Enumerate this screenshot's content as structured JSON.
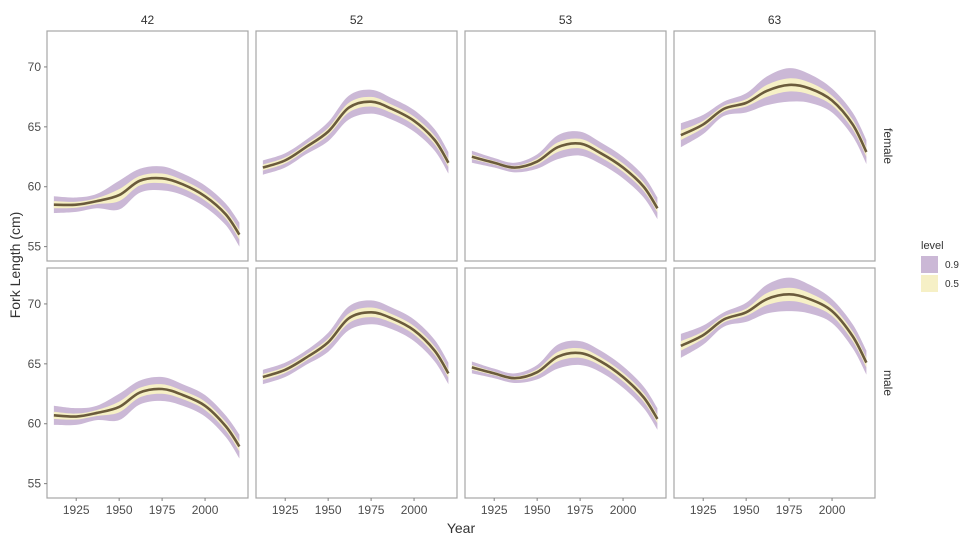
{
  "chart_data": {
    "type": "line",
    "facet_columns": [
      "42",
      "52",
      "53",
      "63"
    ],
    "facet_rows": [
      "female",
      "male"
    ],
    "xlabel": "Year",
    "ylabel": "Fork Length (cm)",
    "xlim": [
      1908,
      2025
    ],
    "ylim": [
      53.8,
      73.0
    ],
    "x_ticks": [
      1925,
      1950,
      1975,
      2000
    ],
    "y_ticks": [
      55,
      60,
      65,
      70
    ],
    "grid": false,
    "legend": {
      "title": "level",
      "placement": "right",
      "entries": [
        {
          "label": "0.9",
          "color": "#cbb8d6"
        },
        {
          "label": "0.5",
          "color": "#f6f0c6"
        }
      ]
    },
    "colors": {
      "line": "#6b5b3c",
      "band_09": "#cbb8d6",
      "band_05": "#f6f0c6",
      "panel_border": "#a6a6a6"
    },
    "x": [
      1912,
      1925,
      1937,
      1950,
      1962,
      1975,
      1987,
      2000,
      2012,
      2020
    ],
    "panels": [
      {
        "column": "42",
        "row": "female",
        "y": [
          58.5,
          58.5,
          58.8,
          59.3,
          60.5,
          60.7,
          60.2,
          59.2,
          57.7,
          56.0
        ],
        "band09": [
          0.7,
          0.6,
          0.6,
          1.2,
          1.0,
          1.0,
          0.9,
          0.9,
          0.9,
          1.0
        ],
        "band05": [
          0.3,
          0.25,
          0.25,
          0.5,
          0.4,
          0.4,
          0.35,
          0.35,
          0.35,
          0.4
        ]
      },
      {
        "column": "52",
        "row": "female",
        "y": [
          61.6,
          62.2,
          63.3,
          64.6,
          66.6,
          67.1,
          66.5,
          65.5,
          63.9,
          62.0
        ],
        "band09": [
          0.6,
          0.6,
          0.6,
          0.8,
          1.0,
          1.0,
          0.9,
          0.9,
          0.9,
          0.9
        ],
        "band05": [
          0.25,
          0.25,
          0.25,
          0.3,
          0.4,
          0.4,
          0.35,
          0.35,
          0.35,
          0.35
        ]
      },
      {
        "column": "53",
        "row": "female",
        "y": [
          62.5,
          62.0,
          61.6,
          62.1,
          63.3,
          63.6,
          62.8,
          61.6,
          60.0,
          58.2
        ],
        "band09": [
          0.5,
          0.4,
          0.4,
          0.6,
          1.0,
          1.0,
          0.9,
          0.9,
          0.9,
          0.9
        ],
        "band05": [
          0.2,
          0.15,
          0.15,
          0.25,
          0.4,
          0.4,
          0.35,
          0.35,
          0.35,
          0.35
        ]
      },
      {
        "column": "63",
        "row": "female",
        "y": [
          64.3,
          65.2,
          66.5,
          67.0,
          68.0,
          68.5,
          68.2,
          67.2,
          65.2,
          62.9
        ],
        "band09": [
          1.0,
          0.8,
          0.6,
          0.8,
          1.2,
          1.4,
          1.2,
          1.0,
          1.0,
          1.0
        ],
        "band05": [
          0.4,
          0.3,
          0.25,
          0.3,
          0.5,
          0.55,
          0.5,
          0.4,
          0.4,
          0.4
        ]
      },
      {
        "column": "42",
        "row": "male",
        "y": [
          60.7,
          60.6,
          60.9,
          61.4,
          62.6,
          62.9,
          62.4,
          61.5,
          59.8,
          58.1
        ],
        "band09": [
          0.8,
          0.7,
          0.6,
          1.1,
          1.0,
          1.0,
          0.9,
          0.9,
          0.9,
          1.0
        ],
        "band05": [
          0.3,
          0.25,
          0.25,
          0.45,
          0.4,
          0.4,
          0.35,
          0.35,
          0.35,
          0.4
        ]
      },
      {
        "column": "52",
        "row": "male",
        "y": [
          63.9,
          64.5,
          65.5,
          66.8,
          68.8,
          69.3,
          68.8,
          67.8,
          66.1,
          64.2
        ],
        "band09": [
          0.6,
          0.6,
          0.6,
          0.8,
          1.0,
          1.0,
          0.9,
          0.9,
          0.9,
          0.9
        ],
        "band05": [
          0.25,
          0.25,
          0.25,
          0.3,
          0.4,
          0.4,
          0.35,
          0.35,
          0.35,
          0.35
        ]
      },
      {
        "column": "53",
        "row": "male",
        "y": [
          64.7,
          64.2,
          63.8,
          64.3,
          65.6,
          65.9,
          65.2,
          63.9,
          62.2,
          60.4
        ],
        "band09": [
          0.5,
          0.4,
          0.4,
          0.6,
          1.0,
          1.0,
          0.9,
          0.9,
          0.9,
          0.9
        ],
        "band05": [
          0.2,
          0.15,
          0.15,
          0.25,
          0.4,
          0.4,
          0.35,
          0.35,
          0.35,
          0.35
        ]
      },
      {
        "column": "63",
        "row": "male",
        "y": [
          66.5,
          67.4,
          68.7,
          69.3,
          70.4,
          70.8,
          70.4,
          69.4,
          67.3,
          65.1
        ],
        "band09": [
          1.0,
          0.8,
          0.6,
          0.8,
          1.2,
          1.4,
          1.2,
          1.0,
          1.0,
          1.0
        ],
        "band05": [
          0.4,
          0.3,
          0.25,
          0.3,
          0.5,
          0.55,
          0.5,
          0.4,
          0.4,
          0.4
        ]
      }
    ]
  }
}
